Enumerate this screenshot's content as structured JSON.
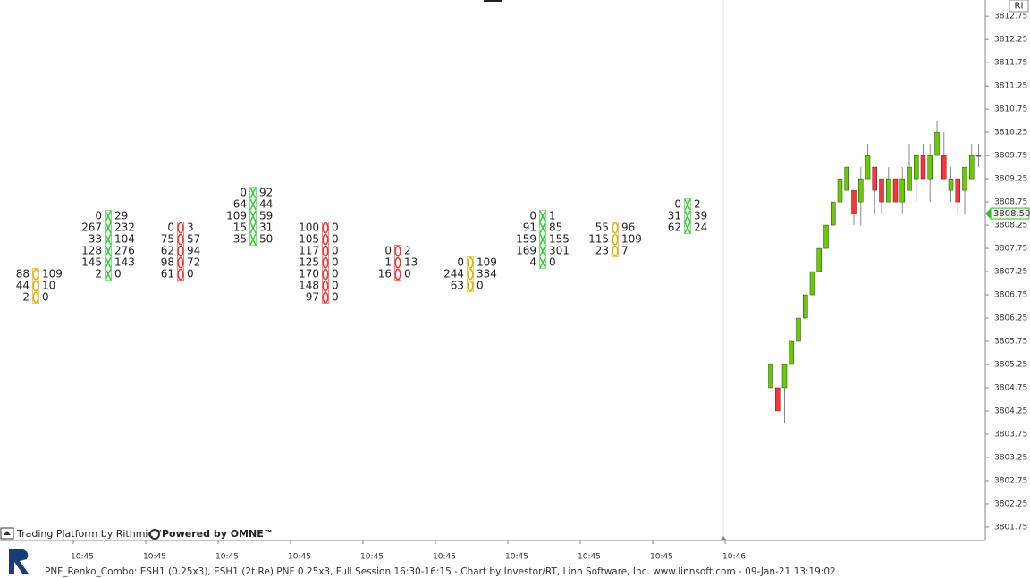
{
  "chart_data": {
    "type": "candlestick",
    "candles": [
      [
        3804.75,
        3805.25,
        3804.75,
        3805.25
      ],
      [
        3804.75,
        3804.75,
        3804.25,
        3804.25
      ],
      [
        3804.75,
        3805.25,
        3804.0,
        3805.25
      ],
      [
        3805.25,
        3805.75,
        3805.25,
        3805.75
      ],
      [
        3805.75,
        3806.25,
        3805.75,
        3806.25
      ],
      [
        3806.25,
        3806.75,
        3806.25,
        3806.75
      ],
      [
        3806.75,
        3807.25,
        3806.75,
        3807.25
      ],
      [
        3807.25,
        3807.75,
        3807.25,
        3807.75
      ],
      [
        3807.75,
        3808.25,
        3807.75,
        3808.25
      ],
      [
        3808.25,
        3808.75,
        3808.25,
        3808.75
      ],
      [
        3808.75,
        3809.25,
        3808.75,
        3809.25
      ],
      [
        3809.0,
        3809.5,
        3809.0,
        3809.5
      ],
      [
        3809.0,
        3809.0,
        3808.25,
        3808.5
      ],
      [
        3808.75,
        3809.5,
        3808.25,
        3809.25
      ],
      [
        3809.25,
        3810.0,
        3809.25,
        3809.75
      ],
      [
        3809.5,
        3809.5,
        3808.5,
        3809.0
      ],
      [
        3809.25,
        3809.25,
        3808.5,
        3808.75
      ],
      [
        3808.75,
        3809.5,
        3808.75,
        3809.25
      ],
      [
        3809.25,
        3809.25,
        3808.75,
        3808.75
      ],
      [
        3808.75,
        3809.5,
        3808.5,
        3809.25
      ],
      [
        3809.0,
        3810.0,
        3809.0,
        3809.5
      ],
      [
        3809.25,
        3809.75,
        3808.75,
        3809.75
      ],
      [
        3809.75,
        3810.0,
        3809.25,
        3809.25
      ],
      [
        3809.25,
        3810.0,
        3808.75,
        3809.75
      ],
      [
        3809.75,
        3810.5,
        3809.75,
        3810.25
      ],
      [
        3809.75,
        3810.25,
        3809.25,
        3809.25
      ],
      [
        3809.0,
        3809.5,
        3808.75,
        3809.25
      ],
      [
        3809.25,
        3809.25,
        3808.5,
        3808.75
      ],
      [
        3809.0,
        3809.5,
        3808.5,
        3809.5
      ],
      [
        3809.25,
        3810.0,
        3809.25,
        3809.75
      ],
      [
        3809.75,
        3810.0,
        3809.5,
        3809.75
      ]
    ],
    "up_color": "#66cc00",
    "down_color": "#ff3333",
    "ylim": [
      3801.46,
      3813.1
    ],
    "yticks": [
      3812.75,
      3812.25,
      3811.75,
      3811.25,
      3810.75,
      3810.25,
      3809.75,
      3809.25,
      3808.75,
      3808.25,
      3807.75,
      3807.25,
      3806.75,
      3806.25,
      3805.75,
      3805.25,
      3804.75,
      3804.25,
      3803.75,
      3803.25,
      3802.75,
      3802.25,
      3801.75
    ],
    "tick_size": 0.25,
    "last_price": {
      "value": 3808.5,
      "label": "3808.50"
    },
    "x_labels": [
      "10:45",
      "10:45",
      "10:45",
      "10:45",
      "10:45",
      "10:45",
      "10:45",
      "10:45",
      "10:45",
      "10:46"
    ]
  },
  "footprint": {
    "columns": [
      {
        "top": 3807.25,
        "color": "#e0b000",
        "rows": [
          [
            88,
            109
          ],
          [
            44,
            10
          ],
          [
            2,
            0
          ]
        ]
      },
      {
        "top": 3808.5,
        "color": "#33cc33",
        "rows": [
          [
            0,
            29
          ],
          [
            267,
            232
          ],
          [
            33,
            104
          ],
          [
            128,
            276
          ],
          [
            145,
            143
          ],
          [
            2,
            0
          ]
        ]
      },
      {
        "top": 3808.25,
        "color": "#ee3333",
        "rows": [
          [
            0,
            3
          ],
          [
            75,
            57
          ],
          [
            62,
            94
          ],
          [
            98,
            72
          ],
          [
            61,
            0
          ]
        ]
      },
      {
        "top": 3809.0,
        "color": "#33cc33",
        "rows": [
          [
            0,
            92
          ],
          [
            64,
            44
          ],
          [
            109,
            59
          ],
          [
            15,
            31
          ],
          [
            35,
            50
          ]
        ]
      },
      {
        "top": 3808.25,
        "color": "#ee3333",
        "rows": [
          [
            100,
            0
          ],
          [
            105,
            0
          ],
          [
            117,
            0
          ],
          [
            125,
            0
          ],
          [
            170,
            0
          ],
          [
            148,
            0
          ],
          [
            97,
            0
          ]
        ]
      },
      {
        "top": 3807.75,
        "color": "#ee3333",
        "rows": [
          [
            0,
            2
          ],
          [
            1,
            13
          ],
          [
            16,
            0
          ]
        ]
      },
      {
        "top": 3807.5,
        "color": "#e0b000",
        "rows": [
          [
            0,
            109
          ],
          [
            244,
            334
          ],
          [
            63,
            0
          ]
        ]
      },
      {
        "top": 3808.5,
        "color": "#33cc33",
        "rows": [
          [
            0,
            1
          ],
          [
            91,
            85
          ],
          [
            159,
            155
          ],
          [
            169,
            301
          ],
          [
            4,
            0
          ]
        ]
      },
      {
        "top": 3808.25,
        "color": "#e0b000",
        "rows": [
          [
            55,
            96
          ],
          [
            115,
            109
          ],
          [
            23,
            7
          ]
        ]
      },
      {
        "top": 3808.75,
        "color": "#33cc33",
        "rows": [
          [
            0,
            2
          ],
          [
            31,
            39
          ],
          [
            62,
            24
          ]
        ]
      }
    ]
  },
  "corner_label": "RI",
  "branding": {
    "rithmic": "Trading Platform by Rithmic™",
    "omne": "Powered by OMNE™"
  },
  "footer": "PNF_Renko_Combo: ESH1 (0.25x3), ESH1 (2t Re) PNF 0.25x3, Full Session 16:30-16:15 - Chart by Investor/RT, Linn Software, Inc. www.linnsoft.com - 09-Jan-21 13:19:02"
}
